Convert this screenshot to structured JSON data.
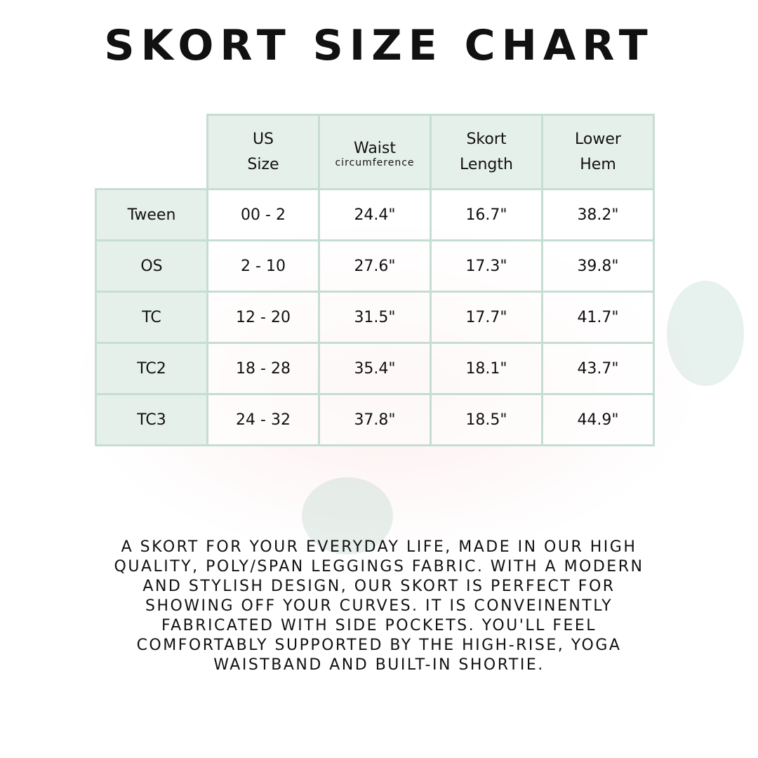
{
  "title": "SKORT SIZE CHART",
  "table": {
    "headers": [
      {
        "line1": "US",
        "line2": "Size",
        "sub": ""
      },
      {
        "line1": "Waist",
        "line2": "",
        "sub": "circumference"
      },
      {
        "line1": "Skort",
        "line2": "Length",
        "sub": ""
      },
      {
        "line1": "Lower",
        "line2": "Hem",
        "sub": ""
      }
    ],
    "rows": [
      [
        "Tween",
        "00 - 2",
        "24.4\"",
        "16.7\"",
        "38.2\""
      ],
      [
        "OS",
        "2 - 10",
        "27.6\"",
        "17.3\"",
        "39.8\""
      ],
      [
        "TC",
        "12 - 20",
        "31.5\"",
        "17.7\"",
        "41.7\""
      ],
      [
        "TC2",
        "18 - 28",
        "35.4\"",
        "18.1\"",
        "43.7\""
      ],
      [
        "TC3",
        "24 - 32",
        "37.8\"",
        "18.5\"",
        "44.9\""
      ]
    ]
  },
  "description": [
    "A skort for your everyday life, made in our high",
    "quality, poly/span leggings fabric. With a modern",
    "and stylish design, our skort is perfect for",
    "showing off your curves. It is conveinently",
    "fabricated with side pockets. You'll feel",
    "comfortably supported by the high-rise, yoga",
    "waistband and built-in shortie."
  ],
  "colors": {
    "table_border": "#c6ddd2",
    "header_fill": "#e6f0eb"
  }
}
